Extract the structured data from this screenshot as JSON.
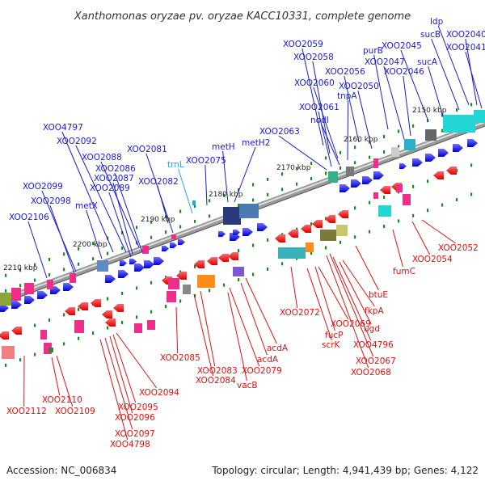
{
  "title": "Xanthomonas oryzae pv. oryzae KACC10331, complete genome",
  "footer": {
    "accession": "Accession: NC_006834",
    "summary": "Topology: circular; Length: 4,941,439 bp; Genes: 4,122"
  },
  "colors": {
    "forward_label": "#1a1acc",
    "reverse_label": "#dd1111",
    "trna_label": "#22aadd",
    "backbone_dark": "#555555",
    "backbone_light": "#bbbbbb",
    "tick_mark": "#1a8a1a"
  },
  "scale_labels": [
    "2150 kbp",
    "2160 kbp",
    "2170 kbp",
    "2180 kbp",
    "2190 kbp",
    "2200 kbp",
    "2210 kbp"
  ],
  "forward_gene_labels": [
    "ldp",
    "sucB",
    "XOO2040",
    "XOO2041",
    "XOO2045",
    "sucA",
    "purB",
    "XOO2047",
    "XOO2046",
    "XOO2059",
    "XOO2058",
    "XOO2056",
    "XOO2060",
    "XOO2050",
    "tnpA",
    "XOO2061",
    "nodI",
    "XOO2063",
    "metH",
    "metH2",
    "XOO2075",
    "trnL",
    "XOO2081",
    "XOO2082",
    "XOO4797",
    "XOO2092",
    "XOO2088",
    "XOO2086",
    "XOO2087",
    "XOO2089",
    "XOO2099",
    "XOO2098",
    "metX",
    "XOO2106"
  ],
  "reverse_gene_labels": [
    "XOO2052",
    "XOO2054",
    "fumC",
    "btuE",
    "fkpA",
    "ugd",
    "XOO4796",
    "XOO2067",
    "XOO2068",
    "XOO2069",
    "fucP",
    "scrK",
    "XOO2072",
    "acdA",
    "acdA",
    "XOO2079",
    "vacB",
    "XOO2083",
    "XOO2084",
    "XOO2085",
    "XOO2094",
    "XOO2095",
    "XOO2096",
    "XOO2097",
    "XOO4798",
    "XOO2110",
    "XOO2109",
    "XOO2112"
  ]
}
